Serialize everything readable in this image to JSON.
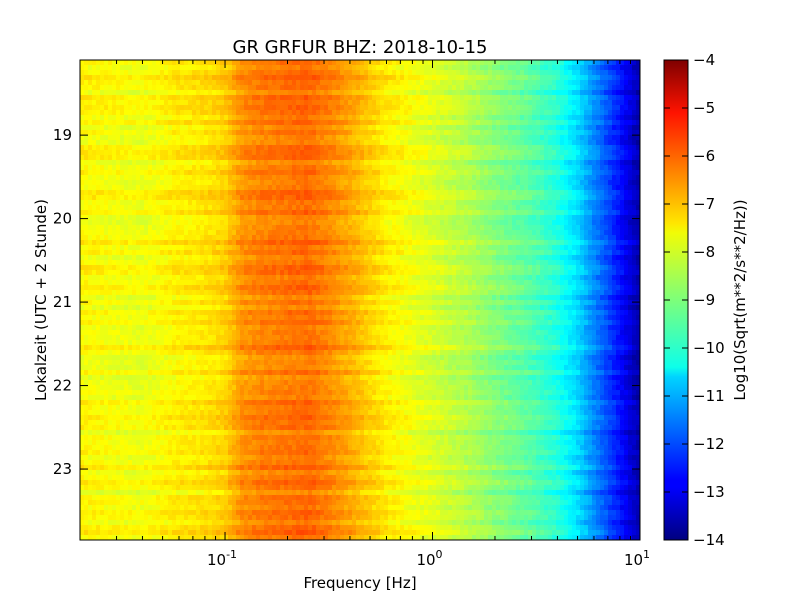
{
  "chart_data": {
    "type": "heatmap",
    "title": "GR GRFUR BHZ: 2018-10-15",
    "xlabel": "Frequency [Hz]",
    "ylabel": "Lokalzeit (UTC + 2 Stunde)",
    "x_scale": "log",
    "xlim": [
      0.02,
      10
    ],
    "x_ticks": [
      {
        "value": 0.1,
        "base": "10",
        "exp": "-1"
      },
      {
        "value": 1,
        "base": "10",
        "exp": "0"
      },
      {
        "value": 10,
        "base": "10",
        "exp": "1"
      }
    ],
    "ylim": [
      18.1,
      23.85
    ],
    "y_ticks": [
      19,
      20,
      21,
      22,
      23
    ],
    "y_tick_labels": [
      "19",
      "20",
      "21",
      "22",
      "23"
    ],
    "colorbar": {
      "label": "Log10(Sqrt(m**2/s**2/Hz))",
      "min": -14,
      "max": -4,
      "ticks": [
        -4,
        -5,
        -6,
        -7,
        -8,
        -9,
        -10,
        -11,
        -12,
        -13,
        -14
      ],
      "tick_labels": [
        "−4",
        "−5",
        "−6",
        "−7",
        "−8",
        "−9",
        "−10",
        "−11",
        "−12",
        "−13",
        "−14"
      ],
      "colormap": "jet"
    },
    "spectrum_profile": {
      "frequency": [
        0.02,
        0.04,
        0.06,
        0.08,
        0.1,
        0.12,
        0.15,
        0.2,
        0.25,
        0.3,
        0.4,
        0.5,
        0.6,
        0.8,
        1.0,
        1.5,
        2.0,
        3.0,
        4.0,
        5.0,
        6.0,
        8.0,
        10.0
      ],
      "value": [
        -7.7,
        -7.9,
        -7.6,
        -7.5,
        -7.3,
        -6.7,
        -6.5,
        -6.4,
        -6.3,
        -6.5,
        -6.9,
        -7.3,
        -7.6,
        -7.9,
        -8.1,
        -8.5,
        -8.9,
        -9.4,
        -9.9,
        -10.6,
        -11.4,
        -12.6,
        -13.6
      ]
    },
    "grid": false
  }
}
